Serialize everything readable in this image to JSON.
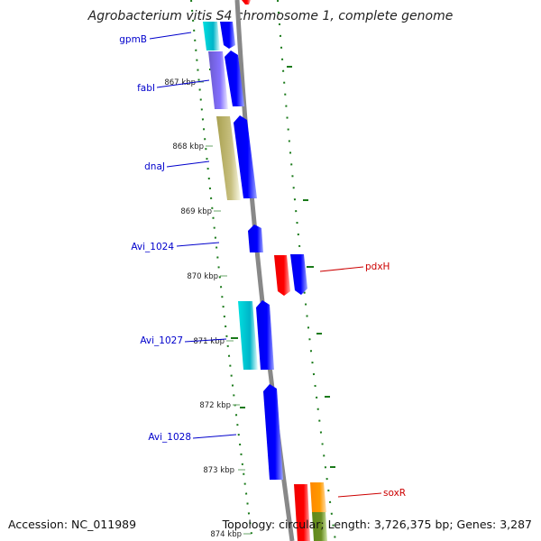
{
  "title": "Agrobacterium vitis S4 chromosome 1, complete genome",
  "footer": {
    "accession": "Accession: NC_011989",
    "summary": "Topology: circular; Length: 3,726,375 bp; Genes: 3,287"
  },
  "tick_labels": [
    "867 kbp",
    "868 kbp",
    "869 kbp",
    "870 kbp",
    "871 kbp",
    "872 kbp",
    "873 kbp",
    "874 kbp"
  ],
  "gene_labels": [
    {
      "name": "gpmB",
      "color": "#0000cc"
    },
    {
      "name": "fabI",
      "color": "#0000cc"
    },
    {
      "name": "dnaJ",
      "color": "#0000cc"
    },
    {
      "name": "Avi_1024",
      "color": "#0000cc"
    },
    {
      "name": "pdxH",
      "color": "#cc0000"
    },
    {
      "name": "Avi_1027",
      "color": "#0000cc"
    },
    {
      "name": "Avi_1028",
      "color": "#0000cc"
    },
    {
      "name": "soxR",
      "color": "#cc0000"
    }
  ],
  "colors": {
    "backbone": "#888888",
    "tick": "#1a7a1a",
    "cds": "#0000ff",
    "rna_teal": "#00cccc",
    "rna_purple": "#7b68ee",
    "rna_olive": "#bdb76b",
    "gene_red": "#ff0000",
    "gene_orange": "#ff9900",
    "gene_green": "#6b8e23"
  }
}
